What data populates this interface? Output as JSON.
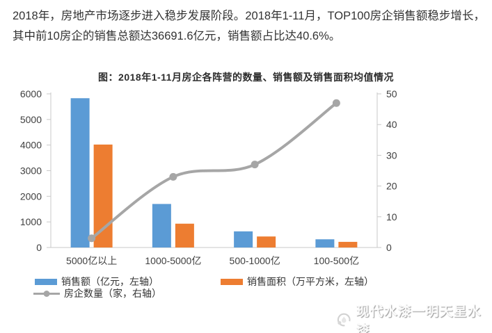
{
  "article": {
    "intro_text": "2018年，房地产市场逐步进入稳步发展阶段。2018年1-11月，TOP100房企销售额稳步增长，其中前10房企的销售总额达36691.6亿元，销售额占比达40.6%。"
  },
  "chart_data": {
    "type": "bar",
    "combo": "clustered bars (left axis) + smoothed line (right axis)",
    "title": "图：2018年1-11月房企各阵营的数量、销售额及销售面积均值情况",
    "categories": [
      "5000亿以上",
      "1000-5000亿",
      "500-1000亿",
      "100-500亿"
    ],
    "series": [
      {
        "key": "sales-amount",
        "name": "销售额（亿元，左轴）",
        "type": "bar",
        "axis": "left",
        "color": "#5B9BD5",
        "values": [
          5830,
          1700,
          630,
          320
        ]
      },
      {
        "key": "sales-area",
        "name": "销售面积（万平方米，左轴）",
        "type": "bar",
        "axis": "left",
        "color": "#ED7D31",
        "values": [
          4020,
          930,
          430,
          220
        ]
      },
      {
        "key": "company-count",
        "name": "房企数量（家，右轴）",
        "type": "line",
        "axis": "right",
        "color": "#A6A6A6",
        "values": [
          3,
          23,
          27,
          47
        ]
      }
    ],
    "left_axis": {
      "min": 0,
      "max": 6000,
      "ticks": [
        0,
        1000,
        2000,
        3000,
        4000,
        5000,
        6000
      ]
    },
    "right_axis": {
      "min": 0,
      "max": 50,
      "ticks": [
        0,
        10,
        20,
        30,
        40,
        50
      ]
    },
    "grid": false,
    "legend_position": "bottom-left",
    "axis_color": "#C9C9C9",
    "tick_label_color": "#3F3F3F"
  },
  "watermark": {
    "icon": "paint-drop-logo",
    "text": "现代水漆一明天星水漆"
  }
}
